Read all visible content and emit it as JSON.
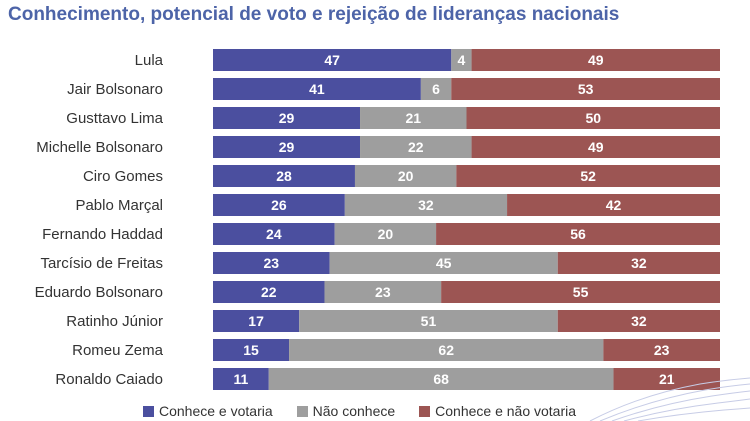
{
  "chart_data": {
    "type": "bar",
    "orientation": "horizontal",
    "stacked": true,
    "title": "Conhecimento, potencial de voto e rejeição de lideranças nacionais",
    "xlabel": "",
    "ylabel": "",
    "xlim": [
      0,
      100
    ],
    "grid": false,
    "legend_position": "bottom-left",
    "categories": [
      "Lula",
      "Jair Bolsonaro",
      "Gusttavo Lima",
      "Michelle Bolsonaro",
      "Ciro Gomes",
      "Pablo Marçal",
      "Fernando Haddad",
      "Tarcísio de Freitas",
      "Eduardo Bolsonaro",
      "Ratinho Júnior",
      "Romeu Zema",
      "Ronaldo Caiado"
    ],
    "series": [
      {
        "name": "Conhece e votaria",
        "color": "#4b4f9f",
        "values": [
          47,
          41,
          29,
          29,
          28,
          26,
          24,
          23,
          22,
          17,
          15,
          11
        ]
      },
      {
        "name": "Não conhece",
        "color": "#9e9e9e",
        "values": [
          4,
          6,
          21,
          22,
          20,
          32,
          20,
          45,
          23,
          51,
          62,
          68
        ]
      },
      {
        "name": "Conhece e não votaria",
        "color": "#9c5553",
        "values": [
          49,
          53,
          50,
          49,
          52,
          42,
          56,
          32,
          55,
          32,
          23,
          21
        ]
      }
    ]
  }
}
